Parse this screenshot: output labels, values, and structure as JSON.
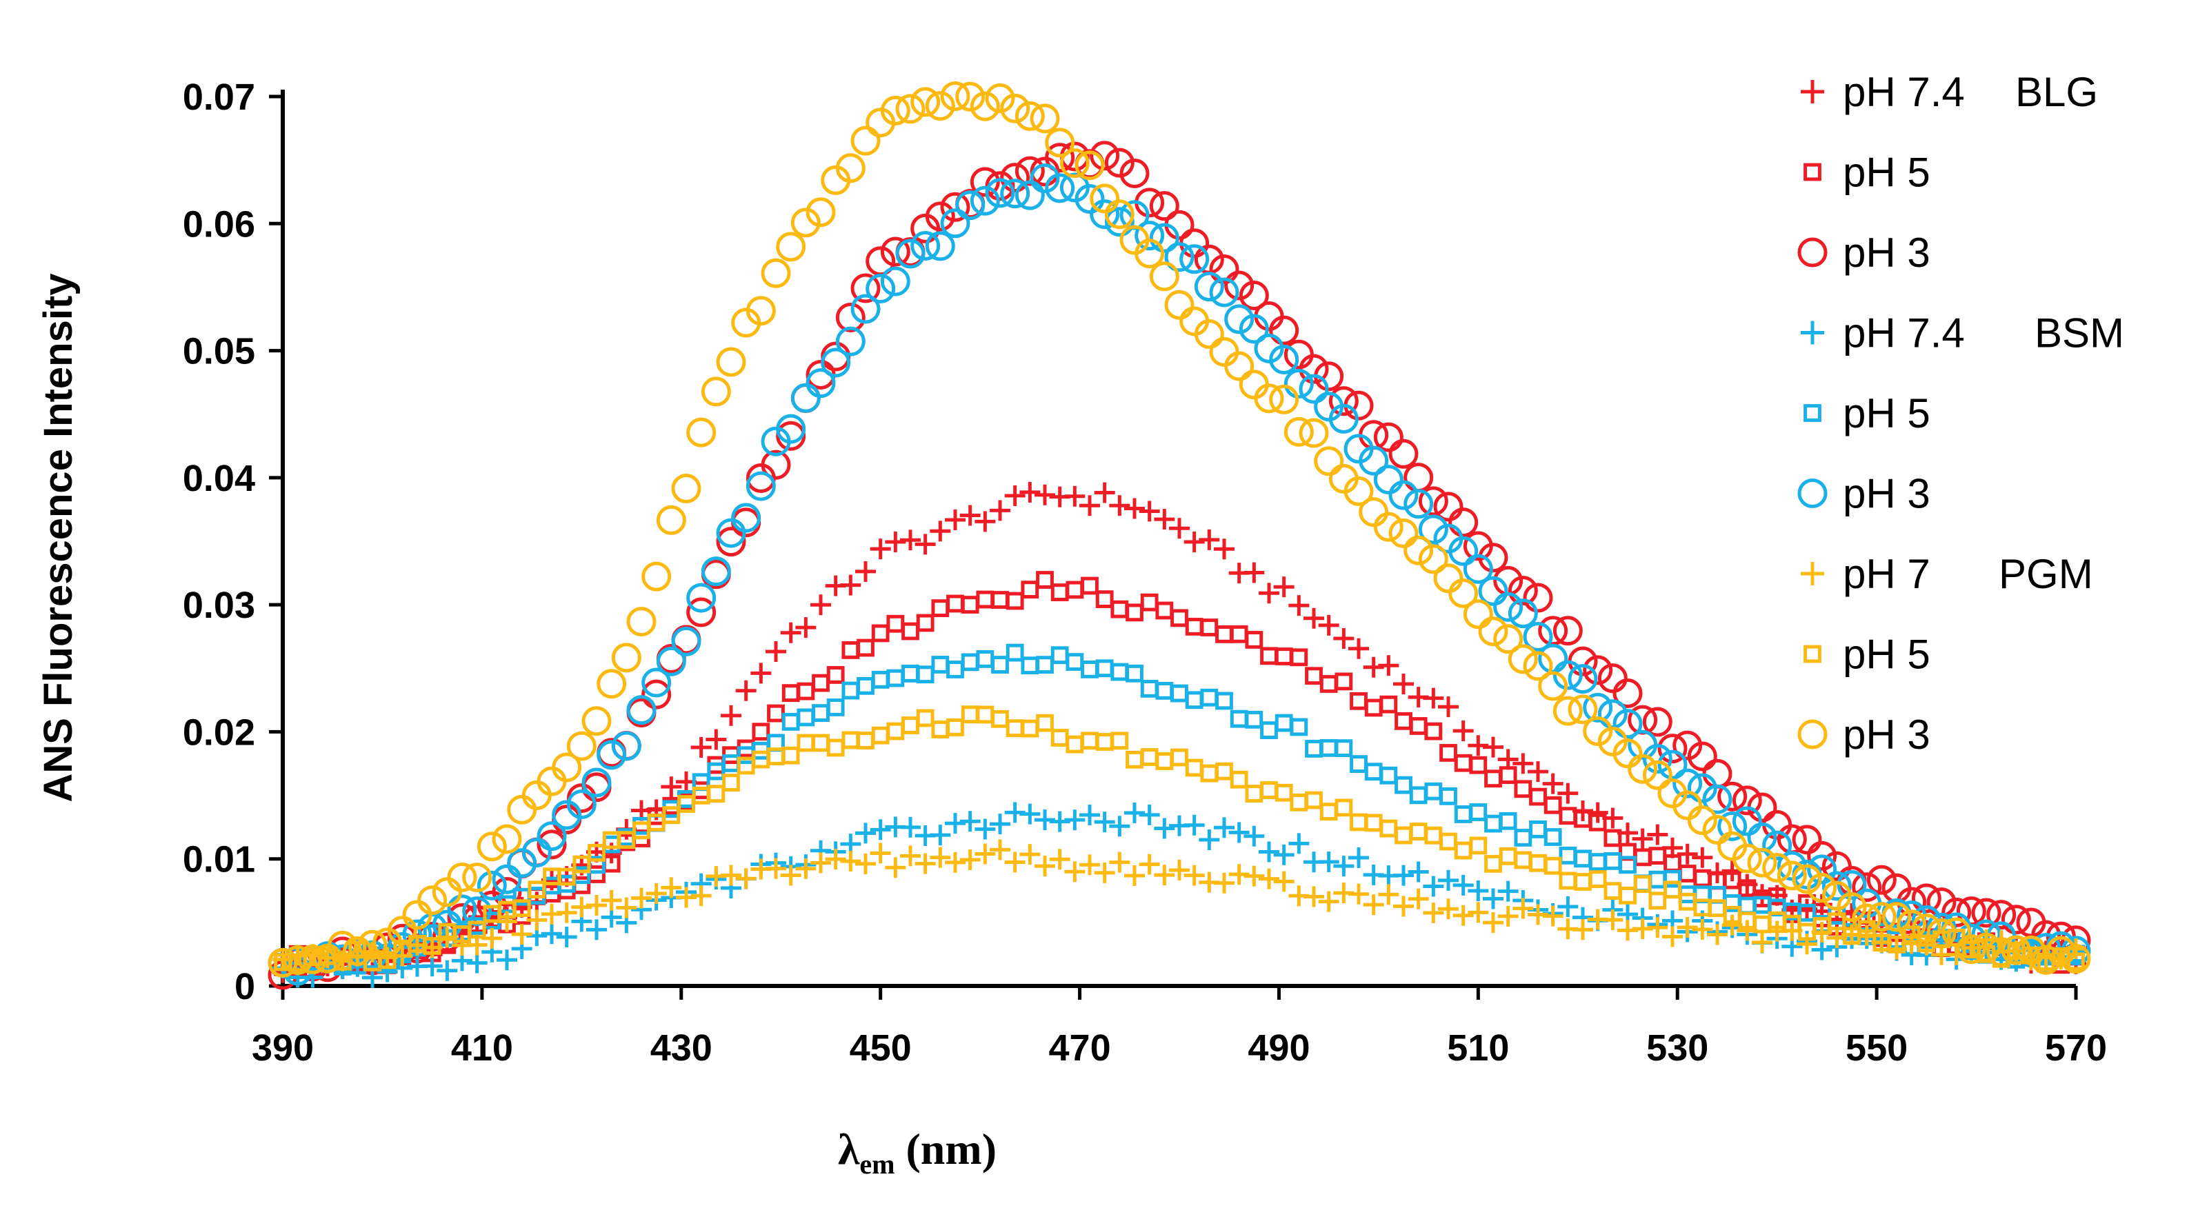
{
  "chart_data": {
    "type": "scatter",
    "title": "",
    "xlabel_main": "λ",
    "xlabel_sub": "em",
    "xlabel_unit": " (nm)",
    "ylabel": "ANS Fluorescence Intensity",
    "xlim": [
      390,
      570
    ],
    "ylim": [
      0,
      0.07
    ],
    "x_ticks": [
      "390",
      "410",
      "430",
      "450",
      "470",
      "490",
      "510",
      "530",
      "550",
      "570"
    ],
    "y_ticks": [
      "0",
      "0.01",
      "0.02",
      "0.03",
      "0.04",
      "0.05",
      "0.06",
      "0.07"
    ],
    "x_step": 1.5,
    "legend_position": "top-right",
    "series": [
      {
        "name": "pH 7.4",
        "group_label": "BLG",
        "color": "#ee1c24",
        "marker": "plus",
        "x_anchor": [
          390,
          400,
          410,
          420,
          430,
          440,
          450,
          460,
          467,
          475,
          480,
          490,
          500,
          510,
          520,
          530,
          540,
          550,
          560,
          570
        ],
        "y_anchor": [
          0.0015,
          0.0018,
          0.0045,
          0.009,
          0.016,
          0.027,
          0.034,
          0.037,
          0.0388,
          0.038,
          0.036,
          0.031,
          0.0255,
          0.0195,
          0.0145,
          0.0105,
          0.007,
          0.0045,
          0.003,
          0.002
        ]
      },
      {
        "name": "pH 5",
        "group_label": "",
        "color": "#ee1c24",
        "marker": "square",
        "x_anchor": [
          390,
          400,
          410,
          420,
          430,
          440,
          450,
          460,
          468,
          480,
          490,
          500,
          510,
          520,
          530,
          540,
          550,
          560,
          570
        ],
        "y_anchor": [
          0.0018,
          0.002,
          0.0045,
          0.0085,
          0.0145,
          0.022,
          0.0275,
          0.0305,
          0.0315,
          0.029,
          0.026,
          0.022,
          0.0175,
          0.013,
          0.0095,
          0.0065,
          0.0045,
          0.003,
          0.0022
        ]
      },
      {
        "name": "pH 3",
        "group_label": "",
        "color": "#ee1c24",
        "marker": "circle",
        "x_anchor": [
          390,
          400,
          410,
          420,
          425,
          430,
          440,
          450,
          460,
          470,
          475,
          480,
          490,
          500,
          510,
          520,
          530,
          540,
          550,
          560,
          570
        ],
        "y_anchor": [
          0.0015,
          0.0025,
          0.0055,
          0.0145,
          0.02,
          0.0265,
          0.0425,
          0.0565,
          0.0625,
          0.0655,
          0.064,
          0.0595,
          0.052,
          0.0435,
          0.035,
          0.0265,
          0.019,
          0.0125,
          0.0078,
          0.0055,
          0.0038
        ]
      },
      {
        "name": "pH 7.4",
        "group_label": "BSM",
        "color": "#1ab0e8",
        "marker": "plus",
        "x_anchor": [
          390,
          400,
          410,
          420,
          430,
          440,
          450,
          460,
          470,
          480,
          490,
          500,
          510,
          520,
          530,
          540,
          550,
          560,
          570
        ],
        "y_anchor": [
          0.0012,
          0.001,
          0.002,
          0.0045,
          0.007,
          0.0095,
          0.0118,
          0.013,
          0.0135,
          0.0125,
          0.011,
          0.0092,
          0.0075,
          0.006,
          0.0048,
          0.0038,
          0.003,
          0.0025,
          0.0022
        ]
      },
      {
        "name": "pH 5",
        "group_label": "",
        "color": "#1ab0e8",
        "marker": "square",
        "x_anchor": [
          390,
          400,
          410,
          420,
          430,
          440,
          450,
          460,
          467,
          480,
          490,
          500,
          510,
          520,
          530,
          540,
          550,
          560,
          570
        ],
        "y_anchor": [
          0.0018,
          0.0022,
          0.0048,
          0.009,
          0.0145,
          0.02,
          0.0245,
          0.0255,
          0.0258,
          0.0235,
          0.0205,
          0.017,
          0.0135,
          0.0105,
          0.0078,
          0.0058,
          0.0042,
          0.003,
          0.0022
        ]
      },
      {
        "name": "pH 3",
        "group_label": "",
        "color": "#1ab0e8",
        "marker": "circle",
        "x_anchor": [
          390,
          400,
          410,
          420,
          425,
          430,
          440,
          450,
          460,
          467,
          470,
          480,
          490,
          500,
          510,
          520,
          530,
          540,
          550,
          560,
          570
        ],
        "y_anchor": [
          0.0015,
          0.0025,
          0.0065,
          0.0145,
          0.02,
          0.027,
          0.043,
          0.055,
          0.0615,
          0.0635,
          0.0625,
          0.058,
          0.0495,
          0.041,
          0.0325,
          0.024,
          0.0165,
          0.0105,
          0.0062,
          0.0038,
          0.0025
        ]
      },
      {
        "name": "pH 7",
        "group_label": "PGM",
        "color": "#fcb912",
        "marker": "plus",
        "x_anchor": [
          390,
          400,
          410,
          420,
          430,
          440,
          450,
          460,
          470,
          480,
          490,
          500,
          510,
          520,
          530,
          540,
          550,
          560,
          570
        ],
        "y_anchor": [
          0.0018,
          0.0025,
          0.004,
          0.0058,
          0.0075,
          0.0088,
          0.0098,
          0.0102,
          0.0096,
          0.0088,
          0.0077,
          0.0067,
          0.0058,
          0.005,
          0.0044,
          0.0039,
          0.0034,
          0.003,
          0.0025
        ]
      },
      {
        "name": "pH 5",
        "group_label": "",
        "color": "#fcb912",
        "marker": "square",
        "x_anchor": [
          390,
          400,
          410,
          420,
          430,
          440,
          450,
          460,
          465,
          480,
          490,
          500,
          510,
          520,
          530,
          540,
          550,
          560,
          570
        ],
        "y_anchor": [
          0.002,
          0.0025,
          0.005,
          0.0095,
          0.0145,
          0.018,
          0.0203,
          0.021,
          0.0205,
          0.0175,
          0.0152,
          0.0128,
          0.0105,
          0.0085,
          0.0068,
          0.0052,
          0.004,
          0.003,
          0.0022
        ]
      },
      {
        "name": "pH 3",
        "group_label": "",
        "color": "#fcb912",
        "marker": "circle",
        "x_anchor": [
          390,
          400,
          410,
          420,
          425,
          430,
          435,
          440,
          445,
          450,
          455,
          460,
          465,
          470,
          475,
          480,
          490,
          500,
          510,
          520,
          530,
          540,
          550,
          560,
          570
        ],
        "y_anchor": [
          0.0018,
          0.0035,
          0.0095,
          0.019,
          0.027,
          0.0385,
          0.0495,
          0.0565,
          0.0625,
          0.068,
          0.0695,
          0.0695,
          0.069,
          0.065,
          0.0595,
          0.054,
          0.046,
          0.0375,
          0.0295,
          0.0215,
          0.0145,
          0.0088,
          0.0052,
          0.0032,
          0.0022
        ]
      }
    ]
  }
}
